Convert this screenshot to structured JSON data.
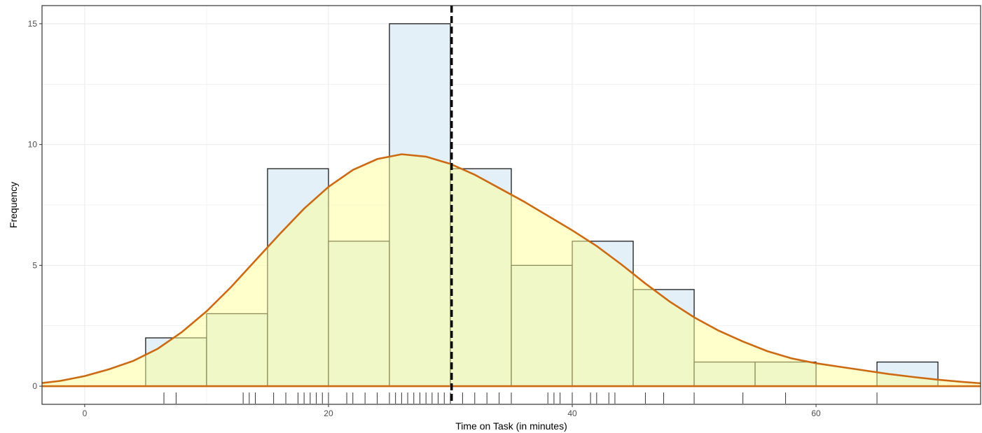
{
  "chart_data": {
    "type": "bar",
    "title": "",
    "xlabel": "Time on Task (in minutes)",
    "ylabel": "Frequency",
    "xlim": [
      -3.5,
      73.5
    ],
    "ylim": [
      -0.75,
      15.75
    ],
    "x_ticks": [
      0,
      20,
      40,
      60
    ],
    "y_ticks": [
      0,
      5,
      10,
      15
    ],
    "grid": true,
    "bin_width": 5,
    "bins": [
      {
        "x0": 5,
        "x1": 10,
        "value": 2
      },
      {
        "x0": 10,
        "x1": 15,
        "value": 3
      },
      {
        "x0": 15,
        "x1": 20,
        "value": 9
      },
      {
        "x0": 20,
        "x1": 25,
        "value": 6
      },
      {
        "x0": 25,
        "x1": 30,
        "value": 15
      },
      {
        "x0": 30,
        "x1": 35,
        "value": 9
      },
      {
        "x0": 35,
        "x1": 40,
        "value": 5
      },
      {
        "x0": 40,
        "x1": 45,
        "value": 6
      },
      {
        "x0": 45,
        "x1": 50,
        "value": 4
      },
      {
        "x0": 50,
        "x1": 55,
        "value": 1
      },
      {
        "x0": 55,
        "x1": 60,
        "value": 1
      },
      {
        "x0": 60,
        "x1": 65,
        "value": 0
      },
      {
        "x0": 65,
        "x1": 70,
        "value": 1
      }
    ],
    "density_curve": [
      [
        -3.5,
        0.13
      ],
      [
        -2,
        0.22
      ],
      [
        0,
        0.42
      ],
      [
        2,
        0.7
      ],
      [
        4,
        1.05
      ],
      [
        6,
        1.55
      ],
      [
        8,
        2.25
      ],
      [
        10,
        3.1
      ],
      [
        12,
        4.1
      ],
      [
        14,
        5.2
      ],
      [
        16,
        6.3
      ],
      [
        18,
        7.35
      ],
      [
        20,
        8.25
      ],
      [
        22,
        8.95
      ],
      [
        24,
        9.4
      ],
      [
        26,
        9.6
      ],
      [
        28,
        9.5
      ],
      [
        30,
        9.2
      ],
      [
        32,
        8.75
      ],
      [
        34,
        8.2
      ],
      [
        36,
        7.65
      ],
      [
        38,
        7.05
      ],
      [
        40,
        6.45
      ],
      [
        42,
        5.8
      ],
      [
        44,
        5.05
      ],
      [
        46,
        4.25
      ],
      [
        48,
        3.5
      ],
      [
        50,
        2.85
      ],
      [
        52,
        2.3
      ],
      [
        54,
        1.85
      ],
      [
        56,
        1.45
      ],
      [
        58,
        1.15
      ],
      [
        60,
        0.95
      ],
      [
        62,
        0.8
      ],
      [
        64,
        0.65
      ],
      [
        66,
        0.5
      ],
      [
        68,
        0.38
      ],
      [
        70,
        0.27
      ],
      [
        72,
        0.18
      ],
      [
        73.5,
        0.12
      ]
    ],
    "mean_line_x": 30.1,
    "rug": [
      6.5,
      7.5,
      13.0,
      13.5,
      14.0,
      15.5,
      16.5,
      17.5,
      18.0,
      18.5,
      19.0,
      19.5,
      20.0,
      21.5,
      22.0,
      23.0,
      24.0,
      25.0,
      25.5,
      26.0,
      26.5,
      27.0,
      27.5,
      28.0,
      28.5,
      29.0,
      29.5,
      30.0,
      31.0,
      32.0,
      33.0,
      34.0,
      35.0,
      38.0,
      38.5,
      39.0,
      40.0,
      41.5,
      42.0,
      43.0,
      43.5,
      46.0,
      47.5,
      50.0,
      54.0,
      57.5,
      65.0
    ],
    "colors": {
      "bar_fill": "#e3f0f7",
      "bar_stroke": "#1a1a1a",
      "density_fill": "#ffff99",
      "density_fill_opacity": 0.5,
      "density_stroke": "#cc6a14",
      "mean_line": "#000000",
      "grid": "#ebebeb",
      "panel_border": "#333333",
      "rug": "#333333"
    }
  }
}
